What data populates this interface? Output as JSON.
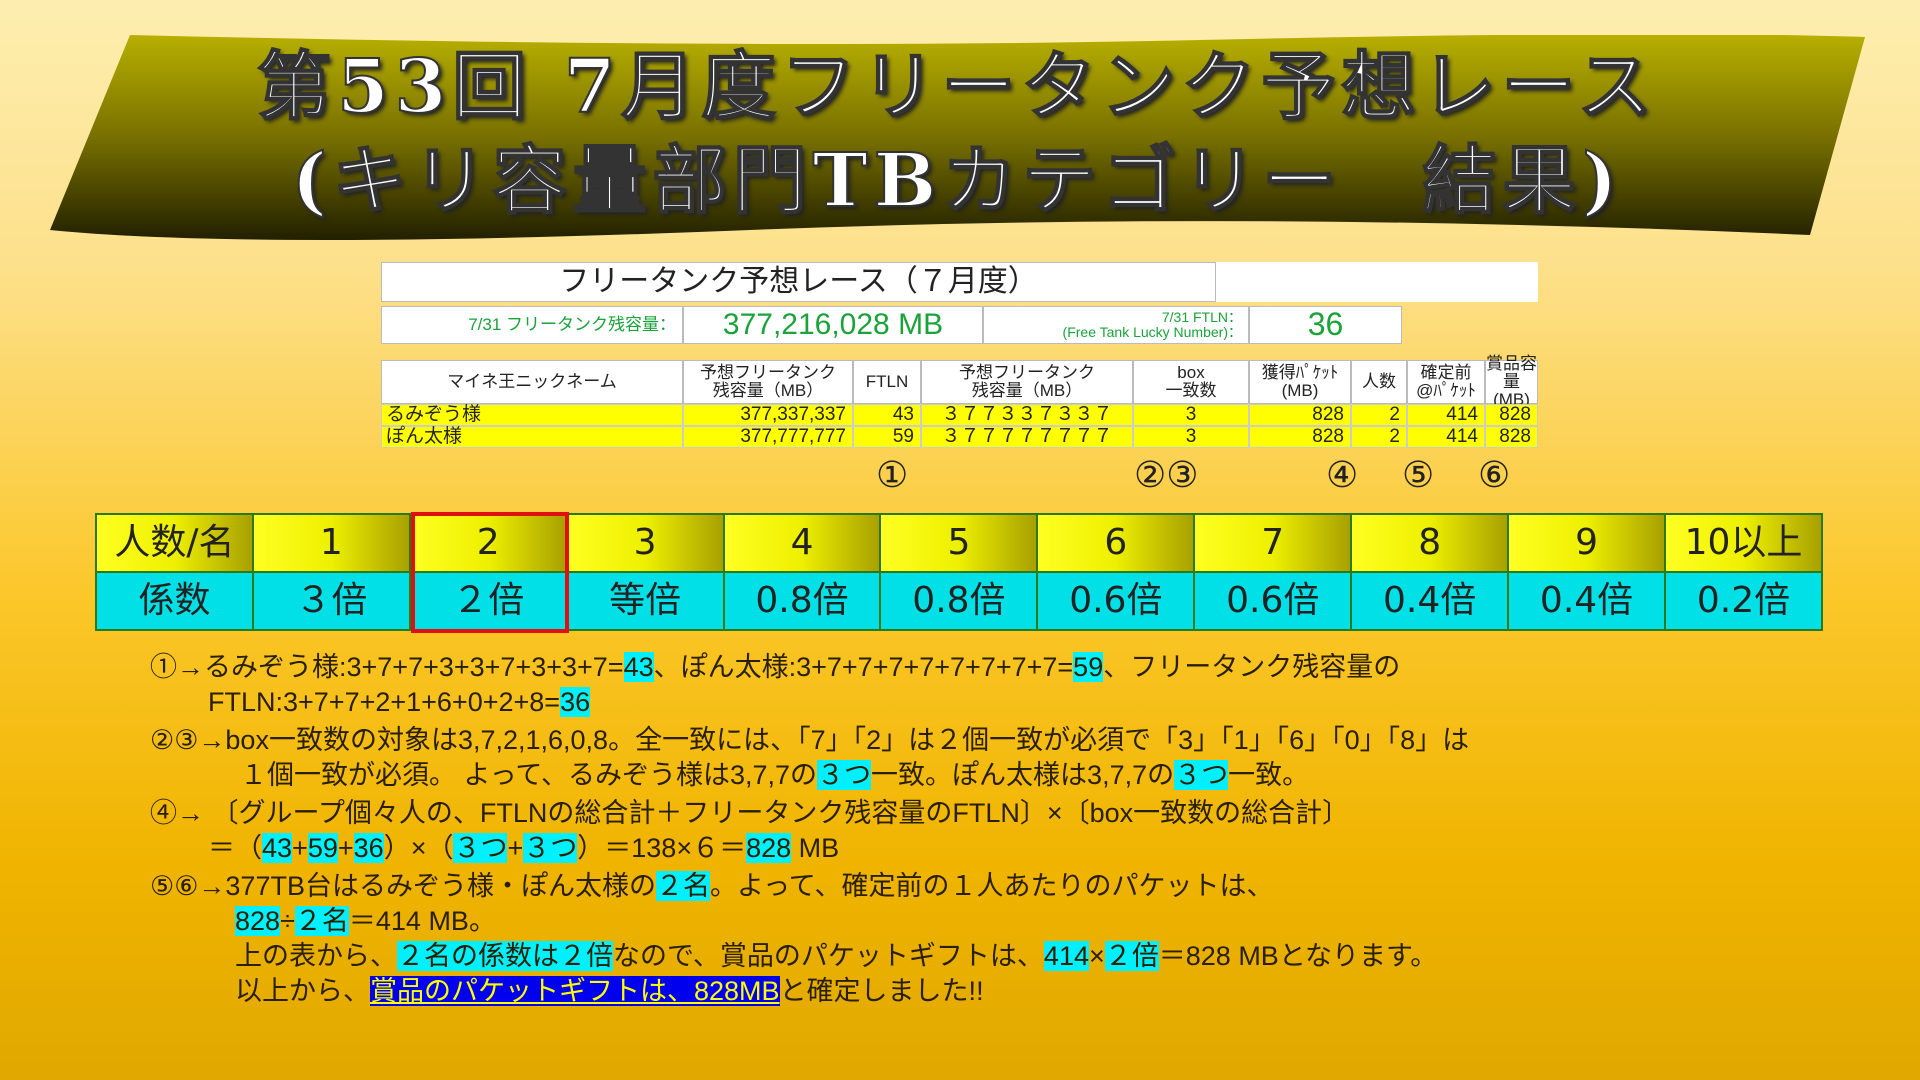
{
  "banner": {
    "line1": "第53回 7月度フリータンク予想レース",
    "line2": "(キリ容量部門TBカテゴリー　結果)"
  },
  "sheet": {
    "title": "フリータンク予想レース（７月度）",
    "remain_label": "7/31 フリータンク残容量：",
    "remain_value": "377,216,028 MB",
    "ftln_label1": "7/31 FTLN：",
    "ftln_label2": "(Free Tank Lucky Number)：",
    "ftln_value": "36",
    "headers": [
      "マイネ王ニックネーム",
      "予想フリータンク\n残容量（MB）",
      "FTLN",
      "予想フリータンク\n残容量（MB）",
      "box\n一致数",
      "獲得ﾊﾟｹｯﾄ\n(MB)",
      "人数",
      "確定前\n@ﾊﾟｹｯﾄ",
      "賞品容量\n(MB)"
    ],
    "rows": [
      [
        "るみぞう様",
        "377,337,337",
        "43",
        "３７７３３７３３７",
        "3",
        "828",
        "2",
        "414",
        "828"
      ],
      [
        "ぽん太様",
        "377,777,777",
        "59",
        "３７７７７７７７７",
        "3",
        "828",
        "2",
        "414",
        "828"
      ]
    ],
    "markers": [
      "①",
      "②③",
      "④",
      "⑤",
      "⑥"
    ]
  },
  "coef": {
    "row1": [
      "人数/名",
      "1",
      "2",
      "3",
      "4",
      "5",
      "6",
      "7",
      "8",
      "9",
      "10以上"
    ],
    "row2": [
      "係数",
      "３倍",
      "２倍",
      "等倍",
      "0.8倍",
      "0.8倍",
      "0.6倍",
      "0.6倍",
      "0.4倍",
      "0.4倍",
      "0.2倍"
    ],
    "selected": "2",
    "colors": {
      "top": "#eef000",
      "bottom": "#00e0e6",
      "selected_border": "#e01010"
    }
  },
  "notes": [
    {
      "indent": 0,
      "seg": [
        [
          "①→るみぞう様:3+7+7+3+3+7+3+3+7=",
          ""
        ],
        [
          "43",
          "c"
        ],
        [
          "、ぽん太様:3+7+7+7+7+7+7+7+7=",
          ""
        ],
        [
          "59",
          "c"
        ],
        [
          "、フリータンク残容量の",
          ""
        ]
      ]
    },
    {
      "indent": 58,
      "seg": [
        [
          "FTLN:3+7+7+2+1+6+0+2+8=",
          ""
        ],
        [
          "36",
          "c"
        ]
      ]
    },
    {
      "indent": 0,
      "gap": true,
      "seg": [
        [
          "②③→box一致数の対象は3,7,2,1,6,0,8。全一致には、「7」「2」は２個一致が必須で「3」「1」「6」「0」「8」は",
          ""
        ]
      ]
    },
    {
      "indent": 90,
      "seg": [
        [
          "１個一致が必須。 よって、るみぞう様は3,7,7の",
          ""
        ],
        [
          "３つ",
          "c"
        ],
        [
          "一致。ぽん太様は3,7,7の",
          ""
        ],
        [
          "３つ",
          "c"
        ],
        [
          "一致。",
          ""
        ]
      ]
    },
    {
      "indent": 0,
      "gap": true,
      "seg": [
        [
          "④→ 〔グループ個々人の、FTLNの総合計＋フリータンク残容量のFTLN〕×〔box一致数の総合計〕",
          ""
        ]
      ]
    },
    {
      "indent": 58,
      "seg": [
        [
          "＝（",
          ""
        ],
        [
          "43",
          "c"
        ],
        [
          "+",
          ""
        ],
        [
          "59",
          "c"
        ],
        [
          "+",
          ""
        ],
        [
          "36",
          "c"
        ],
        [
          "）×（",
          ""
        ],
        [
          "３つ",
          "c"
        ],
        [
          "+",
          ""
        ],
        [
          "３つ",
          "c"
        ],
        [
          "）＝138×６＝",
          ""
        ],
        [
          "828",
          "c"
        ],
        [
          " MB",
          ""
        ]
      ]
    },
    {
      "indent": 0,
      "gap": true,
      "seg": [
        [
          "⑤⑥→377TB台はるみぞう様・ぽん太様の",
          ""
        ],
        [
          "２名",
          "c"
        ],
        [
          "。よって、確定前の１人あたりのパケットは、",
          ""
        ]
      ]
    },
    {
      "indent": 85,
      "seg": [
        [
          "828",
          "c"
        ],
        [
          "÷",
          ""
        ],
        [
          "２名",
          "c"
        ],
        [
          "＝414 MB。",
          ""
        ]
      ]
    },
    {
      "indent": 85,
      "seg": [
        [
          "上の表から、",
          ""
        ],
        [
          "２名の係数は２倍",
          "c"
        ],
        [
          "なので、賞品のパケットギフトは、",
          ""
        ],
        [
          "414",
          "c"
        ],
        [
          "×",
          ""
        ],
        [
          "２倍",
          "c"
        ],
        [
          "＝828 MBとなります。",
          ""
        ]
      ]
    },
    {
      "indent": 85,
      "seg": [
        [
          "以上から、",
          ""
        ],
        [
          "賞品のパケットギフトは、828MB",
          "b"
        ],
        [
          "と確定しました!!",
          ""
        ]
      ]
    }
  ]
}
